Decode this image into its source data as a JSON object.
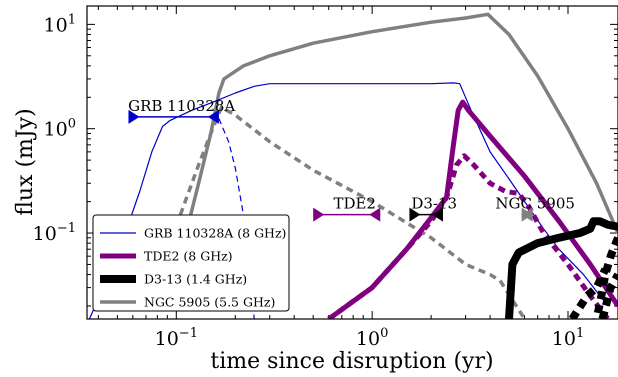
{
  "chart_data": {
    "type": "line",
    "xlabel": "time since disruption (yr)",
    "ylabel": "flux (mJy)",
    "xscale": "log",
    "yscale": "log",
    "xlim": [
      0.035,
      18
    ],
    "ylim": [
      0.015,
      15
    ],
    "legend_position": "lower-left",
    "x_ticks": [
      {
        "value": 0.1,
        "base": "10",
        "exp": "−1"
      },
      {
        "value": 1,
        "base": "10",
        "exp": "0"
      },
      {
        "value": 10,
        "base": "10",
        "exp": "1"
      }
    ],
    "y_ticks": [
      {
        "value": 0.1,
        "base": "10",
        "exp": "−1"
      },
      {
        "value": 1,
        "base": "10",
        "exp": "0"
      },
      {
        "value": 10,
        "base": "10",
        "exp": "1"
      }
    ],
    "series": [
      {
        "name": "GRB 110328A (8 GHz)",
        "color": "#0000cc",
        "style": "solid-thin",
        "points": [
          [
            0.036,
            0.015
          ],
          [
            0.05,
            0.06
          ],
          [
            0.065,
            0.25
          ],
          [
            0.075,
            0.6
          ],
          [
            0.085,
            1.05
          ],
          [
            0.093,
            1.2
          ],
          [
            0.12,
            1.5
          ],
          [
            0.16,
            1.85
          ],
          [
            0.2,
            2.2
          ],
          [
            0.25,
            2.55
          ],
          [
            0.3,
            2.7
          ],
          [
            0.5,
            2.7
          ],
          [
            1.0,
            2.7
          ],
          [
            2.0,
            2.7
          ],
          [
            2.6,
            2.75
          ],
          [
            2.8,
            2.7
          ],
          [
            3.2,
            1.5
          ],
          [
            4.0,
            0.6
          ],
          [
            5.0,
            0.33
          ],
          [
            6.0,
            0.2
          ],
          [
            7.5,
            0.11
          ],
          [
            9.0,
            0.07
          ],
          [
            12.0,
            0.04
          ],
          [
            16.0,
            0.02
          ]
        ],
        "dashed_points": [
          [
            0.165,
            1.25
          ],
          [
            0.185,
            0.75
          ],
          [
            0.2,
            0.42
          ],
          [
            0.22,
            0.15
          ],
          [
            0.24,
            0.04
          ],
          [
            0.25,
            0.015
          ]
        ],
        "marker_label": "GRB 110328A",
        "marker": {
          "t_start": 0.057,
          "t_end": 0.165,
          "flux": 1.3
        }
      },
      {
        "name": "TDE2 (8 GHz)",
        "color": "#800080",
        "style": "solid-thick",
        "points": [
          [
            0.6,
            0.015
          ],
          [
            1.0,
            0.03
          ],
          [
            1.5,
            0.07
          ],
          [
            2.0,
            0.14
          ],
          [
            2.4,
            0.22
          ],
          [
            2.6,
            0.7
          ],
          [
            2.75,
            1.5
          ],
          [
            2.9,
            1.8
          ],
          [
            3.1,
            1.5
          ],
          [
            4.0,
            0.85
          ],
          [
            6.0,
            0.35
          ],
          [
            9.0,
            0.13
          ],
          [
            13.0,
            0.05
          ],
          [
            18.0,
            0.02
          ]
        ],
        "dashed_points": [
          [
            0.6,
            0.015
          ],
          [
            1.0,
            0.03
          ],
          [
            1.5,
            0.07
          ],
          [
            2.0,
            0.13
          ],
          [
            2.4,
            0.22
          ],
          [
            2.7,
            0.45
          ],
          [
            2.95,
            0.55
          ],
          [
            3.3,
            0.45
          ],
          [
            4.0,
            0.3
          ],
          [
            4.8,
            0.25
          ],
          [
            5.6,
            0.24
          ],
          [
            6.3,
            0.18
          ],
          [
            7.5,
            0.1
          ],
          [
            10.0,
            0.05
          ],
          [
            13.0,
            0.025
          ],
          [
            16.0,
            0.015
          ]
        ],
        "marker_label": "TDE2",
        "marker": {
          "t_start": 0.5,
          "t_end": 1.1,
          "flux": 0.15
        }
      },
      {
        "name": "D3-13 (1.4 GHz)",
        "color": "#000000",
        "style": "solid-thicker",
        "points": [
          [
            5.0,
            0.015
          ],
          [
            5.2,
            0.05
          ],
          [
            5.6,
            0.065
          ],
          [
            7.0,
            0.08
          ],
          [
            9.0,
            0.09
          ],
          [
            11.5,
            0.1
          ],
          [
            13.0,
            0.11
          ],
          [
            13.5,
            0.13
          ],
          [
            14.5,
            0.13
          ],
          [
            16.0,
            0.12
          ],
          [
            18.0,
            0.115
          ]
        ],
        "dashed_points": [
          [
            18.0,
            0.09
          ],
          [
            16.5,
            0.06
          ],
          [
            15.5,
            0.04
          ],
          [
            14.8,
            0.025
          ],
          [
            14.0,
            0.015
          ]
        ],
        "dashed_points_2": [
          [
            15.0,
            0.015
          ],
          [
            16.5,
            0.03
          ],
          [
            18.0,
            0.04
          ]
        ],
        "dashed_points_3": [
          [
            10.5,
            0.015
          ],
          [
            12.5,
            0.025
          ],
          [
            14.0,
            0.03
          ],
          [
            15.5,
            0.045
          ]
        ],
        "marker_label": "D3-13",
        "marker": {
          "t_start": 1.55,
          "t_end": 2.3,
          "flux": 0.15
        }
      },
      {
        "name": "NGC 5905 (5.5 GHz)",
        "color": "#808080",
        "style": "solid-medium",
        "points": [
          [
            0.115,
            0.12
          ],
          [
            0.13,
            0.3
          ],
          [
            0.15,
            0.9
          ],
          [
            0.165,
            2.2
          ],
          [
            0.175,
            3.0
          ],
          [
            0.22,
            4.0
          ],
          [
            0.3,
            5.0
          ],
          [
            0.5,
            6.6
          ],
          [
            1.0,
            8.5
          ],
          [
            2.0,
            10.5
          ],
          [
            3.0,
            11.5
          ],
          [
            3.9,
            12.5
          ],
          [
            5.0,
            8.0
          ],
          [
            7.0,
            3.2
          ],
          [
            10.0,
            1.0
          ],
          [
            14.0,
            0.3
          ],
          [
            18.0,
            0.1
          ]
        ],
        "dashed_points": [
          [
            0.105,
            0.15
          ],
          [
            0.13,
            0.45
          ],
          [
            0.15,
            0.9
          ],
          [
            0.17,
            1.6
          ],
          [
            0.2,
            1.35
          ],
          [
            0.3,
            0.75
          ],
          [
            0.5,
            0.4
          ],
          [
            1.0,
            0.2
          ],
          [
            2.0,
            0.09
          ],
          [
            3.0,
            0.05
          ],
          [
            4.0,
            0.04
          ],
          [
            4.5,
            0.035
          ],
          [
            6.0,
            0.015
          ]
        ],
        "marker_label": "NGC 5905",
        "marker": {
          "t_start": 5.8,
          "t_end": 6.6,
          "flux": 0.15
        }
      }
    ]
  }
}
